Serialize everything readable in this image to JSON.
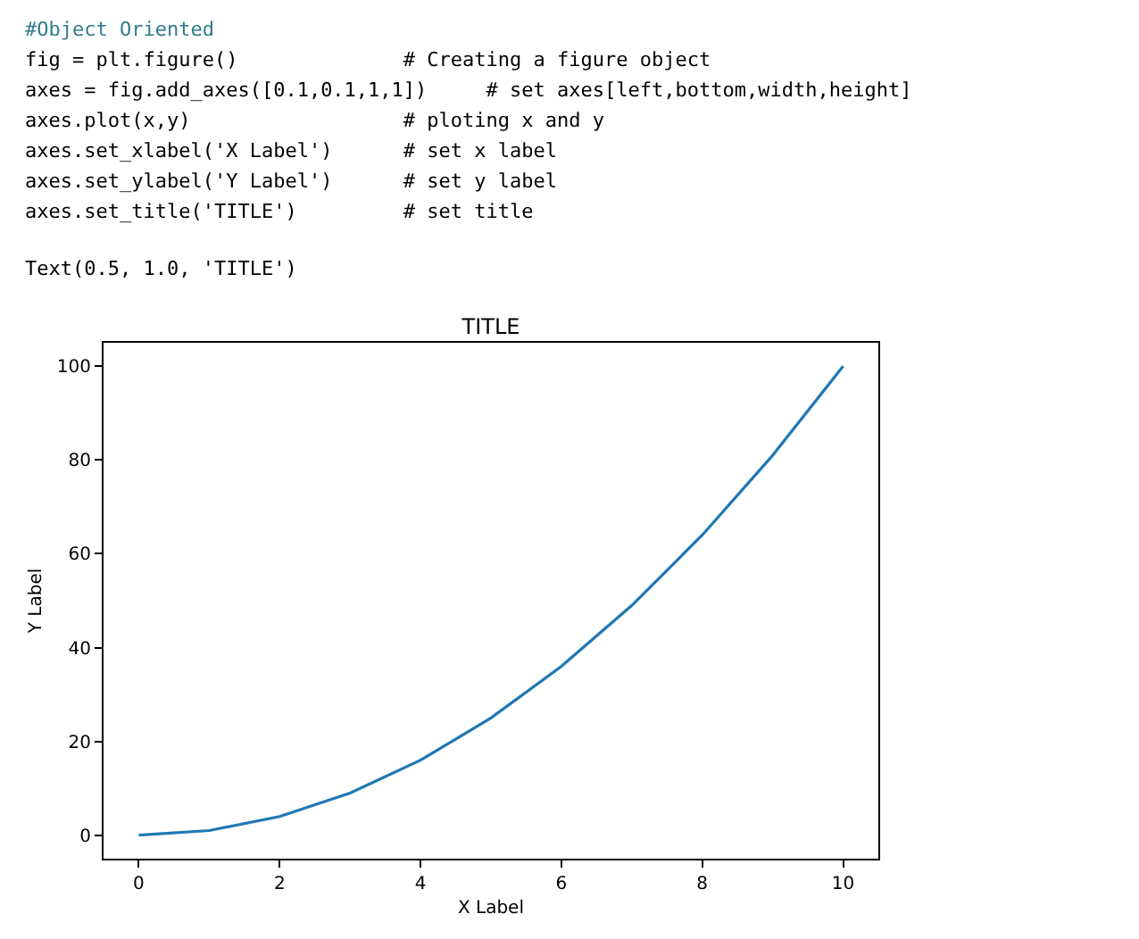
{
  "chart_data": {
    "type": "line",
    "title": "TITLE",
    "xlabel": "X Label",
    "ylabel": "Y Label",
    "annotations": [
      "#Object Oriented",
      "fig = plt.figure()              # Creating a figure object",
      "axes = fig.add_axes([0.1,0.1,1,1])     # set axes[left,bottom,width,height]",
      "axes.plot(x,y)                  # ploting x and y",
      "axes.set_xlabel('X Label')      # set x label",
      "axes.set_ylabel('Y Label')      # set y label",
      "axes.set_title('TITLE')         # set title",
      "Text(0.5, 1.0, 'TITLE')"
    ],
    "x": [
      0,
      1,
      2,
      3,
      4,
      5,
      6,
      7,
      8,
      9,
      10
    ],
    "series": [
      {
        "color": "#1f77b4",
        "values": [
          0,
          1,
          4,
          9,
          16,
          25,
          36,
          49,
          64,
          81,
          100
        ]
      }
    ],
    "xlim": [
      -0.5,
      10.5
    ],
    "ylim": [
      -5,
      105
    ],
    "xticks": [
      0,
      2,
      4,
      6,
      8,
      10
    ],
    "yticks": [
      0,
      20,
      40,
      60,
      80,
      100
    ],
    "marker": "none",
    "line_style": "solid"
  }
}
